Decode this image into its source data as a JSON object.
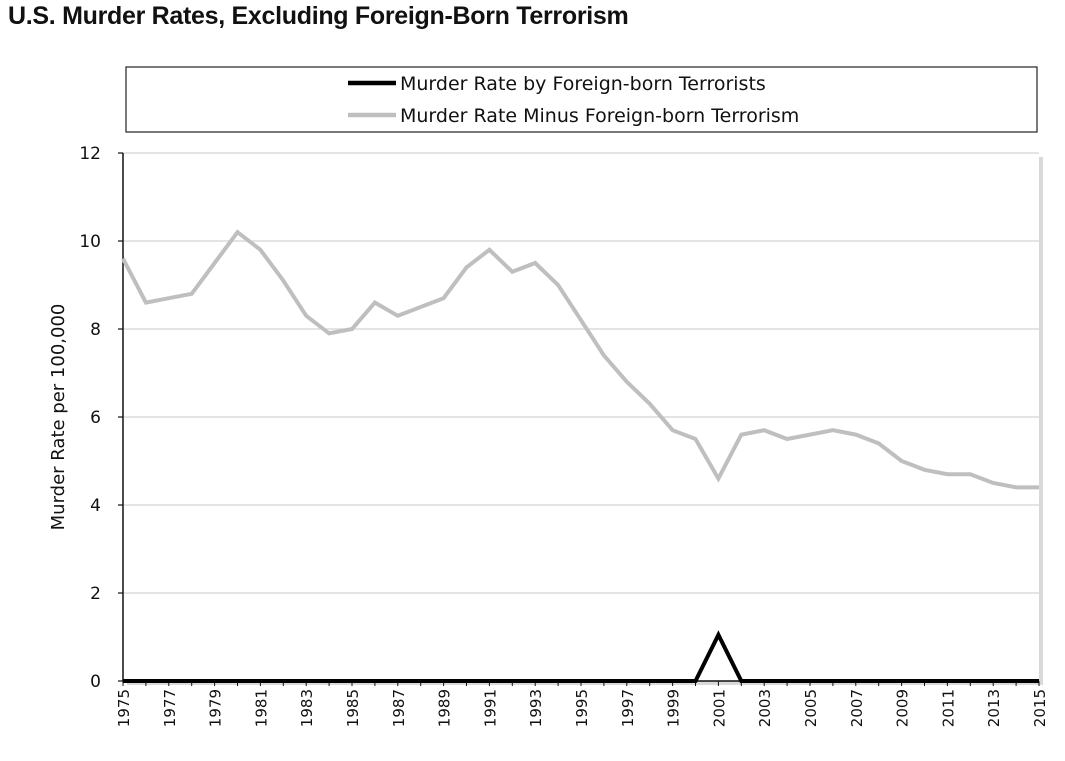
{
  "chart_data": {
    "type": "line",
    "title": "U.S. Murder Rates, Excluding Foreign-Born Terrorism",
    "xlabel": "",
    "ylabel": "Murder Rate per 100,000",
    "ylim": [
      0,
      12
    ],
    "yticks": [
      0,
      2,
      4,
      6,
      8,
      10,
      12
    ],
    "x": [
      1975,
      1976,
      1977,
      1978,
      1979,
      1980,
      1981,
      1982,
      1983,
      1984,
      1985,
      1986,
      1987,
      1988,
      1989,
      1990,
      1991,
      1992,
      1993,
      1994,
      1995,
      1996,
      1997,
      1998,
      1999,
      2000,
      2001,
      2002,
      2003,
      2004,
      2005,
      2006,
      2007,
      2008,
      2009,
      2010,
      2011,
      2012,
      2013,
      2014,
      2015
    ],
    "xtick_labels": [
      "1975",
      "1977",
      "1979",
      "1981",
      "1983",
      "1985",
      "1987",
      "1989",
      "1991",
      "1993",
      "1995",
      "1997",
      "1999",
      "2001",
      "2003",
      "2005",
      "2007",
      "2009",
      "2011",
      "2013",
      "2015"
    ],
    "grid": true,
    "legend_position": "top",
    "series": [
      {
        "name": "Murder Rate by Foreign-born Terrorists",
        "color": "#000000",
        "values": [
          0,
          0,
          0,
          0,
          0,
          0,
          0,
          0,
          0,
          0,
          0,
          0,
          0,
          0,
          0,
          0,
          0,
          0,
          0,
          0,
          0,
          0,
          0,
          0,
          0,
          0,
          1.05,
          0,
          0,
          0,
          0,
          0,
          0,
          0,
          0,
          0,
          0,
          0,
          0,
          0,
          0
        ]
      },
      {
        "name": "Murder Rate Minus Foreign-born Terrorism",
        "color": "#bfbfbf",
        "values": [
          9.6,
          8.6,
          8.7,
          8.8,
          9.5,
          10.2,
          9.8,
          9.1,
          8.3,
          7.9,
          8.0,
          8.6,
          8.3,
          8.5,
          8.7,
          9.4,
          9.8,
          9.3,
          9.5,
          9.0,
          8.2,
          7.4,
          6.8,
          6.3,
          5.7,
          5.5,
          4.6,
          5.6,
          5.7,
          5.5,
          5.6,
          5.7,
          5.6,
          5.4,
          5.0,
          4.8,
          4.7,
          4.7,
          4.5,
          4.4,
          4.4
        ]
      }
    ]
  }
}
